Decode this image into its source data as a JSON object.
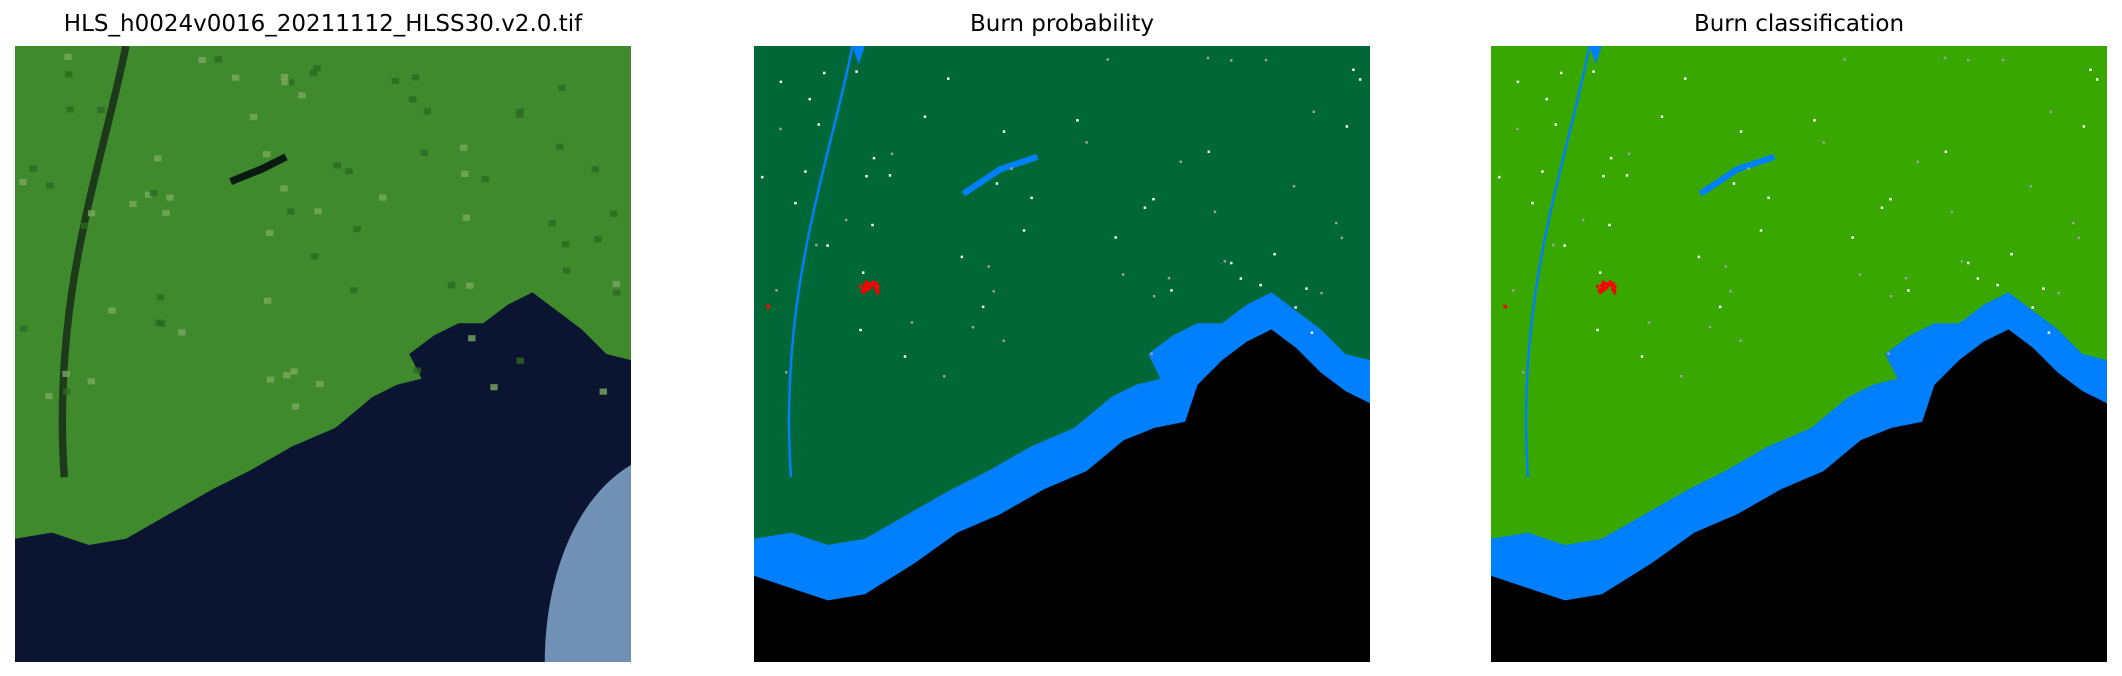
{
  "panels": [
    {
      "title": "HLS_h0024v0016_20211112_HLSS30.v2.0.tif",
      "kind": "satellite-rgb"
    },
    {
      "title": "Burn probability",
      "kind": "probability-map"
    },
    {
      "title": "Burn classification",
      "kind": "classification-map"
    }
  ],
  "colors": {
    "land_probability": "#006837",
    "land_classification": "#38a800",
    "water": "#0080ff",
    "nodata": "#000000",
    "burn": "#ff0000",
    "satellite_land": "#3f8a2c",
    "satellite_sea": "#0b1430",
    "cloud": "#9cc4f0"
  }
}
